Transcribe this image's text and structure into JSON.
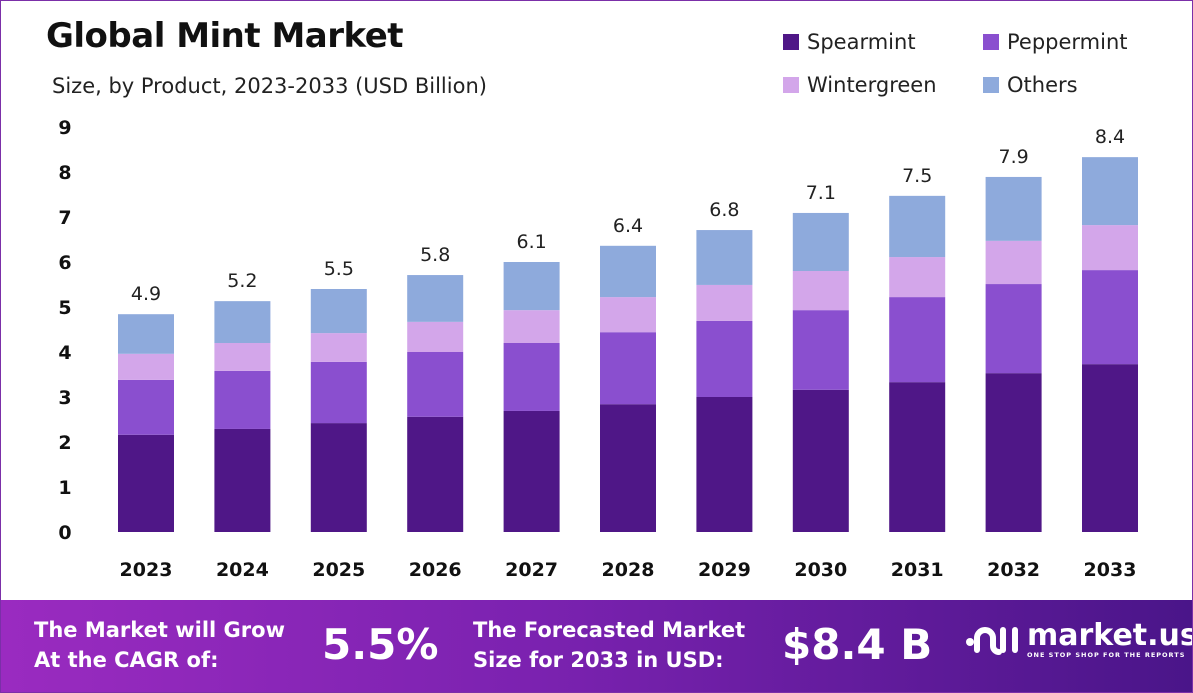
{
  "chart_data": {
    "type": "bar",
    "stacked": true,
    "title": "Global Mint Market",
    "subtitle": "Size, by Product, 2023-2033 (USD Billion)",
    "xlabel": "",
    "ylabel": "",
    "ylim": [
      0,
      9
    ],
    "yticks": [
      "0",
      "1",
      "2",
      "3",
      "4",
      "5",
      "6",
      "7",
      "8",
      "9"
    ],
    "grid": false,
    "legend_position": "top-right",
    "categories": [
      "2023",
      "2024",
      "2025",
      "2026",
      "2027",
      "2028",
      "2029",
      "2030",
      "2031",
      "2032",
      "2033"
    ],
    "totals": [
      "4.9",
      "5.2",
      "5.5",
      "5.8",
      "6.1",
      "6.4",
      "6.8",
      "7.1",
      "7.5",
      "7.9",
      "8.4"
    ],
    "series": [
      {
        "name": "Spearmint",
        "color": "#4f1787",
        "values": [
          2.16,
          2.29,
          2.42,
          2.56,
          2.69,
          2.84,
          3.0,
          3.16,
          3.33,
          3.53,
          3.73
        ]
      },
      {
        "name": "Peppermint",
        "color": "#8a4fcf",
        "values": [
          1.22,
          1.29,
          1.36,
          1.44,
          1.51,
          1.6,
          1.69,
          1.77,
          1.89,
          1.98,
          2.09
        ]
      },
      {
        "name": "Wintergreen",
        "color": "#d3a6ea",
        "values": [
          0.58,
          0.62,
          0.64,
          0.67,
          0.73,
          0.78,
          0.8,
          0.87,
          0.89,
          0.96,
          1.0
        ]
      },
      {
        "name": "Others",
        "color": "#8eaadc",
        "values": [
          0.88,
          0.93,
          0.98,
          1.04,
          1.07,
          1.14,
          1.22,
          1.29,
          1.36,
          1.42,
          1.51
        ]
      }
    ]
  },
  "footer": {
    "cagr_label_1": "The Market will Grow",
    "cagr_label_2": "At the CAGR of:",
    "cagr_value": "5.5%",
    "forecast_label_1": "The Forecasted Market",
    "forecast_label_2": "Size for 2033 in USD:",
    "forecast_value": "$8.4 B",
    "logo_name": "market.us",
    "logo_tagline": "ONE STOP SHOP FOR THE REPORTS"
  }
}
